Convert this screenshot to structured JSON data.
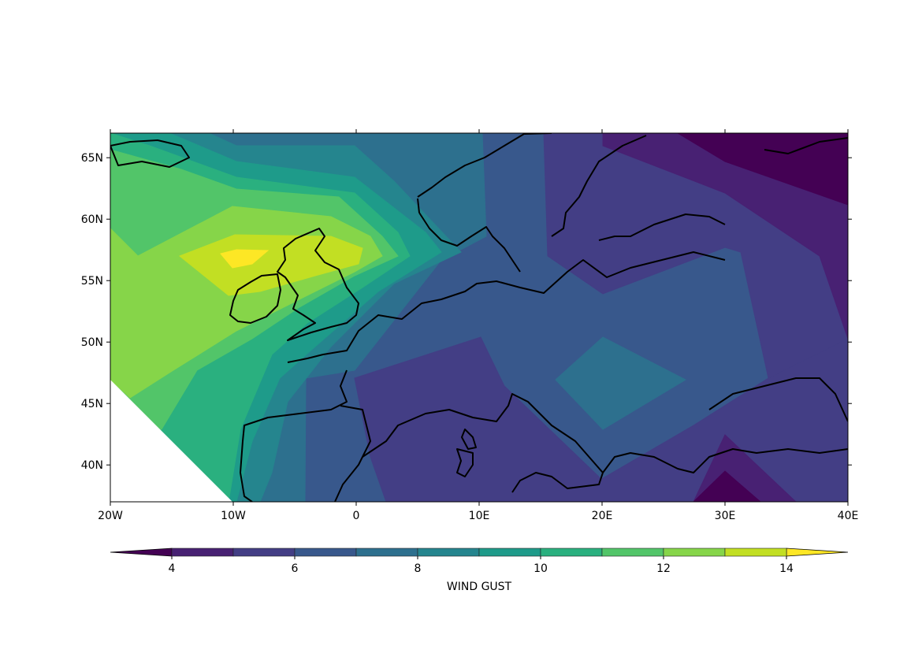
{
  "chart_data": {
    "type": "filled-contour-map",
    "title": "",
    "projection": "PlateCarree",
    "lon_range": [
      -20,
      40
    ],
    "lat_range": [
      37,
      67
    ],
    "x_ticks": [
      "20W",
      "10W",
      "0",
      "10E",
      "20E",
      "30E",
      "40E"
    ],
    "x_tick_values": [
      -20,
      -10,
      0,
      10,
      20,
      30,
      40
    ],
    "y_ticks": [
      "40N",
      "45N",
      "50N",
      "55N",
      "60N",
      "65N"
    ],
    "y_tick_values": [
      40,
      45,
      50,
      55,
      60,
      65
    ],
    "coastlines": true,
    "colorbar": {
      "label": "WIND GUST",
      "orientation": "horizontal",
      "placement": "bottom",
      "extend": "both",
      "levels": [
        4,
        5,
        6,
        7,
        8,
        9,
        10,
        11,
        12,
        13,
        14
      ],
      "tick_labels": [
        "4",
        "6",
        "8",
        "10",
        "12",
        "14"
      ],
      "tick_values": [
        4,
        6,
        8,
        10,
        12,
        14
      ],
      "colormap": "viridis",
      "colors": [
        "#440154",
        "#482173",
        "#433e85",
        "#38588c",
        "#2d708e",
        "#25858e",
        "#1e9b8a",
        "#2ab07f",
        "#52c569",
        "#86d549",
        "#c2df23",
        "#fde725"
      ]
    },
    "features": {
      "max_region": "over Ireland / northern UK, above 14",
      "min_region": "northeast corner (Finland/Russia), below 4"
    }
  }
}
